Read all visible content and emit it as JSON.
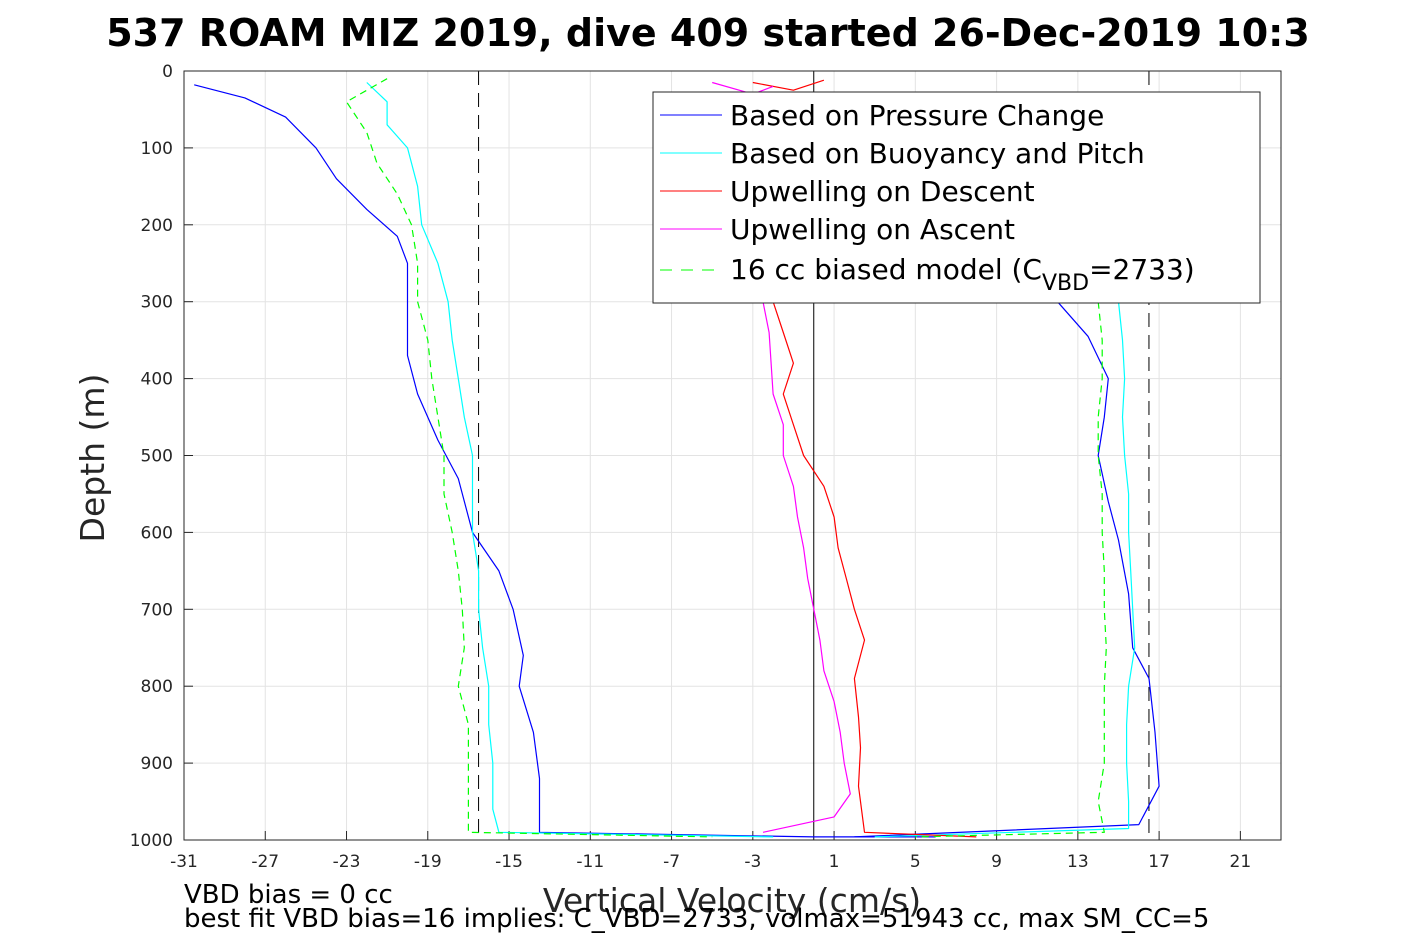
{
  "chart_data": {
    "type": "line",
    "title": "537 ROAM MIZ 2019, dive 409 started 26-Dec-2019 10:3",
    "xlabel": "Vertical Velocity (cm/s)",
    "ylabel": "Depth (m)",
    "xlim": [
      -31,
      23
    ],
    "ylim": [
      1000,
      0
    ],
    "y_reversed": true,
    "grid": true,
    "x_ticks": [
      "-31",
      "-27",
      "-23",
      "-19",
      "-15",
      "-11",
      "-7",
      "-3",
      "1",
      "5",
      "9",
      "13",
      "17",
      "21"
    ],
    "y_ticks": [
      "0",
      "100",
      "200",
      "300",
      "400",
      "500",
      "600",
      "700",
      "800",
      "900",
      "1000"
    ],
    "legend_position": "top-right",
    "legend": [
      {
        "label": "Based on Pressure Change",
        "color": "#0000ff",
        "dash": "solid"
      },
      {
        "label": "Based on Buoyancy and Pitch",
        "color": "#00ffff",
        "dash": "solid"
      },
      {
        "label": "Upwelling on Descent",
        "color": "#ff0000",
        "dash": "solid"
      },
      {
        "label": "Upwelling on Ascent",
        "color": "#ff00ff",
        "dash": "solid"
      },
      {
        "label_pre": "16 cc biased model (C",
        "label_sub": "VBD",
        "label_post": "=2733)",
        "color": "#00ff00",
        "dash": "dashed"
      }
    ],
    "reference_lines": [
      {
        "x": -16.5,
        "style": "dashed",
        "color": "#000000"
      },
      {
        "x": 0,
        "style": "solid",
        "color": "#000000"
      },
      {
        "x": 16.5,
        "style": "dashed",
        "color": "#000000"
      }
    ],
    "series": [
      {
        "name": "Based on Pressure Change",
        "color": "#0000ff",
        "dash": "solid",
        "segments": [
          [
            [
              -30.5,
              18
            ],
            [
              -28,
              35
            ],
            [
              -26,
              60
            ],
            [
              -24.5,
              100
            ],
            [
              -23.5,
              140
            ],
            [
              -22,
              180
            ],
            [
              -20.5,
              215
            ],
            [
              -20,
              250
            ],
            [
              -20,
              300
            ],
            [
              -20,
              370
            ],
            [
              -19.5,
              420
            ],
            [
              -18.5,
              480
            ],
            [
              -17.5,
              530
            ],
            [
              -16.8,
              600
            ],
            [
              -15.5,
              650
            ],
            [
              -14.8,
              700
            ],
            [
              -14.3,
              760
            ],
            [
              -14.5,
              800
            ],
            [
              -13.8,
              860
            ],
            [
              -13.5,
              920
            ],
            [
              -13.5,
              990
            ],
            [
              0,
              996
            ],
            [
              6,
              996
            ]
          ],
          [
            [
              12,
              300
            ],
            [
              13.5,
              345
            ],
            [
              14.5,
              400
            ],
            [
              14.3,
              450
            ],
            [
              14,
              500
            ],
            [
              14.5,
              560
            ],
            [
              15,
              610
            ],
            [
              15.5,
              680
            ],
            [
              15.7,
              750
            ],
            [
              16.5,
              790
            ],
            [
              16.8,
              860
            ],
            [
              17,
              930
            ],
            [
              16,
              980
            ],
            [
              2,
              996
            ]
          ]
        ]
      },
      {
        "name": "Based on Buoyancy and Pitch",
        "color": "#00ffff",
        "dash": "solid",
        "segments": [
          [
            [
              -22,
              15
            ],
            [
              -21,
              40
            ],
            [
              -21,
              70
            ],
            [
              -20,
              100
            ],
            [
              -19.5,
              150
            ],
            [
              -19.3,
              200
            ],
            [
              -18.5,
              250
            ],
            [
              -18,
              300
            ],
            [
              -17.8,
              350
            ],
            [
              -17.5,
              400
            ],
            [
              -17.2,
              450
            ],
            [
              -16.8,
              500
            ],
            [
              -16.8,
              550
            ],
            [
              -16.8,
              600
            ],
            [
              -16.5,
              650
            ],
            [
              -16.5,
              700
            ],
            [
              -16.3,
              750
            ],
            [
              -16,
              800
            ],
            [
              -16,
              850
            ],
            [
              -15.8,
              900
            ],
            [
              -15.8,
              960
            ],
            [
              -15.5,
              990
            ],
            [
              -2,
              996
            ]
          ],
          [
            [
              15,
              300
            ],
            [
              15.2,
              350
            ],
            [
              15.3,
              400
            ],
            [
              15.2,
              450
            ],
            [
              15.3,
              500
            ],
            [
              15.5,
              550
            ],
            [
              15.5,
              600
            ],
            [
              15.6,
              650
            ],
            [
              15.7,
              700
            ],
            [
              15.8,
              750
            ],
            [
              15.5,
              800
            ],
            [
              15.4,
              850
            ],
            [
              15.4,
              900
            ],
            [
              15.5,
              950
            ],
            [
              15.5,
              985
            ],
            [
              3,
              996
            ]
          ]
        ]
      },
      {
        "name": "Upwelling on Descent",
        "color": "#ff0000",
        "dash": "solid",
        "segments": [
          [
            [
              -2,
              300
            ],
            [
              -1.5,
              340
            ],
            [
              -1,
              380
            ],
            [
              -1.5,
              420
            ],
            [
              -1,
              460
            ],
            [
              -0.5,
              500
            ],
            [
              0.5,
              540
            ],
            [
              1,
              580
            ],
            [
              1.2,
              620
            ],
            [
              1.6,
              660
            ],
            [
              2,
              700
            ],
            [
              2.5,
              740
            ],
            [
              2,
              790
            ],
            [
              2.2,
              840
            ],
            [
              2.3,
              880
            ],
            [
              2.2,
              930
            ],
            [
              2.5,
              990
            ],
            [
              8,
              996
            ]
          ],
          [
            [
              -3,
              15
            ],
            [
              -1,
              25
            ],
            [
              0.5,
              12
            ]
          ]
        ]
      },
      {
        "name": "Upwelling on Ascent",
        "color": "#ff00ff",
        "dash": "solid",
        "segments": [
          [
            [
              -2.5,
              300
            ],
            [
              -2.2,
              340
            ],
            [
              -2.1,
              380
            ],
            [
              -2,
              420
            ],
            [
              -1.5,
              460
            ],
            [
              -1.5,
              500
            ],
            [
              -1,
              540
            ],
            [
              -0.8,
              580
            ],
            [
              -0.5,
              620
            ],
            [
              -0.3,
              660
            ],
            [
              0,
              700
            ],
            [
              0.3,
              740
            ],
            [
              0.5,
              780
            ],
            [
              1,
              820
            ],
            [
              1.3,
              860
            ],
            [
              1.5,
              900
            ],
            [
              1.8,
              940
            ],
            [
              1,
              970
            ],
            [
              -2.5,
              990
            ]
          ],
          [
            [
              -5,
              15
            ],
            [
              -3,
              30
            ],
            [
              -2,
              20
            ]
          ]
        ]
      },
      {
        "name": "16 cc biased model (C_VBD=2733)",
        "color": "#00ff00",
        "dash": "dashed",
        "segments": [
          [
            [
              -21,
              10
            ],
            [
              -23,
              40
            ],
            [
              -22,
              80
            ],
            [
              -21.5,
              120
            ],
            [
              -20.5,
              160
            ],
            [
              -19.8,
              200
            ],
            [
              -19.5,
              250
            ],
            [
              -19.5,
              300
            ],
            [
              -19,
              350
            ],
            [
              -18.8,
              400
            ],
            [
              -18.5,
              450
            ],
            [
              -18.2,
              500
            ],
            [
              -18.2,
              550
            ],
            [
              -17.8,
              600
            ],
            [
              -17.5,
              650
            ],
            [
              -17.3,
              700
            ],
            [
              -17.2,
              750
            ],
            [
              -17.5,
              800
            ],
            [
              -17,
              850
            ],
            [
              -17,
              900
            ],
            [
              -17,
              950
            ],
            [
              -17,
              990
            ],
            [
              -5,
              996
            ]
          ],
          [
            [
              14,
              300
            ],
            [
              14.2,
              350
            ],
            [
              14.2,
              400
            ],
            [
              14,
              450
            ],
            [
              14,
              500
            ],
            [
              14.2,
              550
            ],
            [
              14.2,
              600
            ],
            [
              14.3,
              650
            ],
            [
              14.3,
              700
            ],
            [
              14.4,
              750
            ],
            [
              14.3,
              800
            ],
            [
              14.3,
              850
            ],
            [
              14.3,
              900
            ],
            [
              14,
              950
            ],
            [
              14.3,
              990
            ],
            [
              5,
              996
            ]
          ]
        ]
      }
    ],
    "annotations": [
      "VBD bias = 0 cc",
      "best fit VBD bias=16 implies: C_VBD=2733, volmax=51943 cc, max SM_CC=5"
    ]
  }
}
